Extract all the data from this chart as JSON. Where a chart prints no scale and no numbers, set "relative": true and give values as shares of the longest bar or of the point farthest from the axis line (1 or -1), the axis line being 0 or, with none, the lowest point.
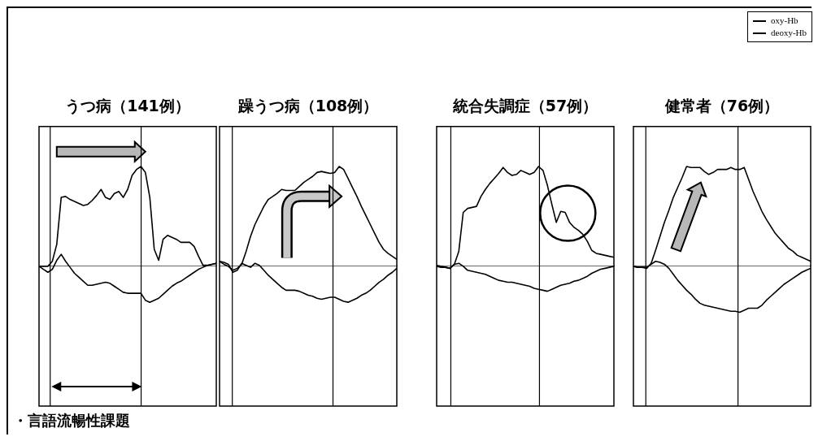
{
  "chart_data": [
    {
      "type": "line",
      "title": "うつ病（141例）",
      "relative": true,
      "tick_labels": false,
      "categories": [
        null,
        null,
        null,
        null,
        null,
        null,
        null,
        null,
        null,
        null,
        null,
        null,
        null,
        null,
        null,
        null,
        null,
        null,
        null,
        null,
        null,
        null,
        null,
        null,
        null,
        null,
        null,
        null,
        null,
        null,
        null,
        null,
        null,
        null,
        null,
        null,
        null,
        null,
        null,
        null,
        null
      ],
      "annotations": [
        "・言語流暢性課題"
      ],
      "series": [
        {
          "color": "#000000",
          "values": [
            0,
            0,
            0,
            0.05,
            0.22,
            0.69,
            0.7,
            0.67,
            0.65,
            0.63,
            0.61,
            0.62,
            0.66,
            0.71,
            0.77,
            0.69,
            0.67,
            0.73,
            0.75,
            0.69,
            0.77,
            0.91,
            0.97,
            1,
            0.94,
            0.69,
            0.17,
            0.06,
            0.27,
            0.31,
            0.29,
            0.27,
            0.24,
            0.24,
            0.24,
            0.2,
            0.1,
            0.01,
            0.01,
            0.02,
            0.03
          ]
        },
        {
          "color": "#000000",
          "values": [
            0,
            -0.03,
            -0.06,
            -0.03,
            0.06,
            0.12,
            0.05,
            -0.01,
            -0.07,
            -0.11,
            -0.15,
            -0.19,
            -0.19,
            -0.18,
            -0.17,
            -0.16,
            -0.17,
            -0.2,
            -0.23,
            -0.26,
            -0.27,
            -0.27,
            -0.27,
            -0.27,
            -0.34,
            -0.36,
            -0.34,
            -0.32,
            -0.28,
            -0.24,
            -0.2,
            -0.17,
            -0.15,
            -0.12,
            -0.09,
            -0.06,
            -0.03,
            -0.01,
            0.01,
            0.02,
            0.03
          ]
        }
      ]
    },
    {
      "type": "line",
      "title": "躁うつ病（108例）",
      "relative": true,
      "tick_labels": false,
      "categories": [
        null,
        null,
        null,
        null,
        null,
        null,
        null,
        null,
        null,
        null,
        null,
        null,
        null,
        null,
        null,
        null,
        null,
        null,
        null,
        null,
        null,
        null,
        null,
        null,
        null,
        null,
        null,
        null,
        null,
        null,
        null,
        null,
        null,
        null,
        null,
        null,
        null,
        null,
        null,
        null,
        null
      ],
      "series": [
        {
          "color": "#000000",
          "values": [
            0.05,
            0.02,
            0,
            -0.04,
            -0.02,
            0.02,
            0.15,
            0.3,
            0.42,
            0.51,
            0.6,
            0.67,
            0.7,
            0.73,
            0.77,
            0.76,
            0.76,
            0.76,
            0.8,
            0.84,
            0.87,
            0.9,
            0.94,
            0.95,
            0.94,
            0.93,
            0.94,
            1,
            0.97,
            0.88,
            0.79,
            0.7,
            0.6,
            0.51,
            0.42,
            0.33,
            0.24,
            0.17,
            0.13,
            0.1,
            0.07
          ]
        },
        {
          "color": "#000000",
          "values": [
            0.05,
            0.04,
            0.02,
            -0.06,
            -0.04,
            0.03,
            0.01,
            -0.01,
            0.03,
            0.01,
            -0.04,
            -0.09,
            -0.13,
            -0.17,
            -0.21,
            -0.24,
            -0.24,
            -0.24,
            -0.25,
            -0.27,
            -0.29,
            -0.3,
            -0.32,
            -0.33,
            -0.32,
            -0.31,
            -0.31,
            -0.33,
            -0.35,
            -0.36,
            -0.34,
            -0.32,
            -0.29,
            -0.27,
            -0.24,
            -0.2,
            -0.16,
            -0.13,
            -0.09,
            -0.06,
            -0.02
          ]
        }
      ]
    },
    {
      "type": "line",
      "title": "統合失調症（57例）",
      "relative": true,
      "tick_labels": false,
      "categories": [
        null,
        null,
        null,
        null,
        null,
        null,
        null,
        null,
        null,
        null,
        null,
        null,
        null,
        null,
        null,
        null,
        null,
        null,
        null,
        null,
        null,
        null,
        null,
        null,
        null,
        null,
        null,
        null,
        null,
        null,
        null,
        null,
        null,
        null,
        null,
        null,
        null,
        null,
        null,
        null,
        null
      ],
      "series": [
        {
          "color": "#000000",
          "values": [
            0.01,
            0,
            -0.01,
            -0.02,
            0.02,
            0.15,
            0.54,
            0.58,
            0.59,
            0.6,
            0.7,
            0.77,
            0.83,
            0.88,
            0.93,
            0.99,
            0.94,
            0.91,
            0.92,
            0.96,
            0.94,
            0.92,
            0.94,
            1,
            0.96,
            0.81,
            0.62,
            0.44,
            0.55,
            0.54,
            0.44,
            0.39,
            0.36,
            0.32,
            0.25,
            0.16,
            0.13,
            0.12,
            0.11,
            0.1,
            0.09
          ]
        },
        {
          "color": "#000000",
          "values": [
            0,
            -0.01,
            -0.01,
            -0.02,
            0.02,
            0.03,
            0,
            -0.04,
            -0.05,
            -0.06,
            -0.07,
            -0.08,
            -0.1,
            -0.12,
            -0.14,
            -0.15,
            -0.16,
            -0.16,
            -0.17,
            -0.18,
            -0.19,
            -0.2,
            -0.22,
            -0.23,
            -0.24,
            -0.25,
            -0.23,
            -0.21,
            -0.19,
            -0.18,
            -0.17,
            -0.15,
            -0.14,
            -0.12,
            -0.1,
            -0.07,
            -0.05,
            -0.03,
            -0.02,
            -0.01,
            0
          ]
        }
      ]
    },
    {
      "type": "line",
      "title": "健常者（76例）",
      "relative": true,
      "tick_labels": false,
      "legend": "top right",
      "categories": [
        null,
        null,
        null,
        null,
        null,
        null,
        null,
        null,
        null,
        null,
        null,
        null,
        null,
        null,
        null,
        null,
        null,
        null,
        null,
        null,
        null,
        null,
        null,
        null,
        null,
        null,
        null,
        null,
        null,
        null,
        null,
        null,
        null,
        null,
        null,
        null,
        null,
        null,
        null,
        null,
        null
      ],
      "series": [
        {
          "name": "oxy-Hb",
          "color": "#000000",
          "values": [
            0,
            -0.01,
            -0.01,
            -0.02,
            0.03,
            0.16,
            0.3,
            0.44,
            0.56,
            0.69,
            0.79,
            0.89,
            1,
            0.99,
            0.99,
            0.99,
            0.95,
            0.92,
            0.94,
            0.97,
            0.97,
            0.97,
            0.99,
            0.97,
            0.97,
            0.99,
            0.87,
            0.75,
            0.65,
            0.55,
            0.47,
            0.4,
            0.33,
            0.28,
            0.23,
            0.18,
            0.15,
            0.11,
            0.09,
            0.07,
            0.05
          ]
        },
        {
          "name": "deoxy-Hb",
          "color": "#000000",
          "values": [
            0,
            -0.01,
            -0.01,
            -0.01,
            0.02,
            0.05,
            0.04,
            0.02,
            -0.02,
            -0.08,
            -0.14,
            -0.19,
            -0.24,
            -0.28,
            -0.33,
            -0.37,
            -0.39,
            -0.4,
            -0.41,
            -0.42,
            -0.43,
            -0.44,
            -0.45,
            -0.45,
            -0.46,
            -0.44,
            -0.42,
            -0.42,
            -0.42,
            -0.39,
            -0.34,
            -0.3,
            -0.26,
            -0.22,
            -0.18,
            -0.15,
            -0.12,
            -0.09,
            -0.06,
            -0.04,
            -0.02
          ]
        }
      ]
    }
  ]
}
